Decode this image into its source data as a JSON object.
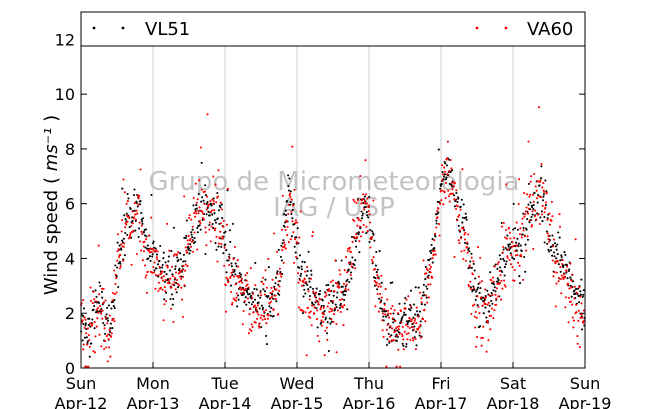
{
  "chart_data": {
    "type": "scatter",
    "title": "",
    "ylabel": "Wind speed",
    "ylabel_unit": "ms⁻¹",
    "xlabel": "",
    "ylim": [
      0,
      13
    ],
    "yticks": [
      0,
      2,
      4,
      6,
      8,
      10,
      12
    ],
    "xlim_days": [
      0,
      7
    ],
    "x_ticks": [
      {
        "day": 0,
        "dow": "Sun",
        "date": "Apr-12"
      },
      {
        "day": 1,
        "dow": "Mon",
        "date": "Apr-13"
      },
      {
        "day": 2,
        "dow": "Tue",
        "date": "Apr-14"
      },
      {
        "day": 3,
        "dow": "Wed",
        "date": "Apr-15"
      },
      {
        "day": 4,
        "dow": "Thu",
        "date": "Apr-16"
      },
      {
        "day": 5,
        "dow": "Fri",
        "date": "Apr-17"
      },
      {
        "day": 6,
        "dow": "Sat",
        "date": "Apr-18"
      },
      {
        "day": 7,
        "dow": "Sun",
        "date": "Apr-19"
      }
    ],
    "grid": "vertical",
    "legend_position": "top",
    "watermark": [
      "Grupo de Micrometeorologia",
      "IAG / USP"
    ],
    "series": [
      {
        "name": "VL51",
        "color": "#000000",
        "profile_day": [
          0,
          0.1,
          0.25,
          0.4,
          0.5,
          0.65,
          0.8,
          0.9,
          1.0,
          1.2,
          1.4,
          1.6,
          1.8,
          1.95,
          2.1,
          2.3,
          2.45,
          2.6,
          2.75,
          2.9,
          3.05,
          3.2,
          3.35,
          3.5,
          3.65,
          3.8,
          3.95,
          4.1,
          4.25,
          4.4,
          4.55,
          4.7,
          4.8,
          4.9,
          5.0,
          5.1,
          5.2,
          5.35,
          5.5,
          5.65,
          5.8,
          5.95,
          6.1,
          6.25,
          6.4,
          6.6,
          6.75,
          6.9,
          7.0
        ],
        "profile_speed": [
          1.8,
          1.4,
          2.5,
          1.2,
          3.8,
          5.5,
          5.8,
          4.5,
          4.2,
          3.4,
          3.5,
          5.4,
          5.8,
          5.2,
          3.2,
          2.8,
          2.3,
          2.1,
          3.0,
          6.5,
          3.5,
          2.7,
          2.2,
          2.5,
          2.6,
          4.3,
          6.0,
          3.5,
          1.6,
          1.5,
          1.7,
          2.0,
          3.0,
          4.5,
          6.5,
          7.2,
          6.2,
          4.8,
          2.5,
          2.2,
          3.3,
          4.6,
          4.2,
          5.8,
          6.0,
          4.0,
          3.3,
          2.5,
          1.8
        ],
        "points_per_day": 150,
        "scatter_spread": 0.8
      },
      {
        "name": "VA60",
        "color": "#ff0000",
        "profile_day": [
          0,
          0.1,
          0.25,
          0.4,
          0.5,
          0.65,
          0.8,
          0.9,
          1.0,
          1.2,
          1.4,
          1.6,
          1.8,
          1.95,
          2.1,
          2.3,
          2.45,
          2.6,
          2.75,
          2.9,
          3.05,
          3.2,
          3.35,
          3.5,
          3.65,
          3.8,
          3.95,
          4.1,
          4.25,
          4.4,
          4.55,
          4.7,
          4.8,
          4.9,
          5.0,
          5.1,
          5.2,
          5.35,
          5.5,
          5.65,
          5.8,
          5.95,
          6.1,
          6.25,
          6.4,
          6.6,
          6.75,
          6.9,
          7.0
        ],
        "profile_speed": [
          1.5,
          1.1,
          2.3,
          1.0,
          3.6,
          5.2,
          5.6,
          4.2,
          3.9,
          3.0,
          3.3,
          5.6,
          6.0,
          5.0,
          3.0,
          2.6,
          2.0,
          1.9,
          2.9,
          6.2,
          3.2,
          2.4,
          2.0,
          2.3,
          2.8,
          4.6,
          6.3,
          3.2,
          1.4,
          1.3,
          1.6,
          1.8,
          2.8,
          4.3,
          6.3,
          7.0,
          6.0,
          4.5,
          2.2,
          2.0,
          3.1,
          4.4,
          4.4,
          6.0,
          6.2,
          3.7,
          3.0,
          2.2,
          1.6
        ],
        "points_per_day": 160,
        "scatter_spread": 1.1
      }
    ]
  }
}
